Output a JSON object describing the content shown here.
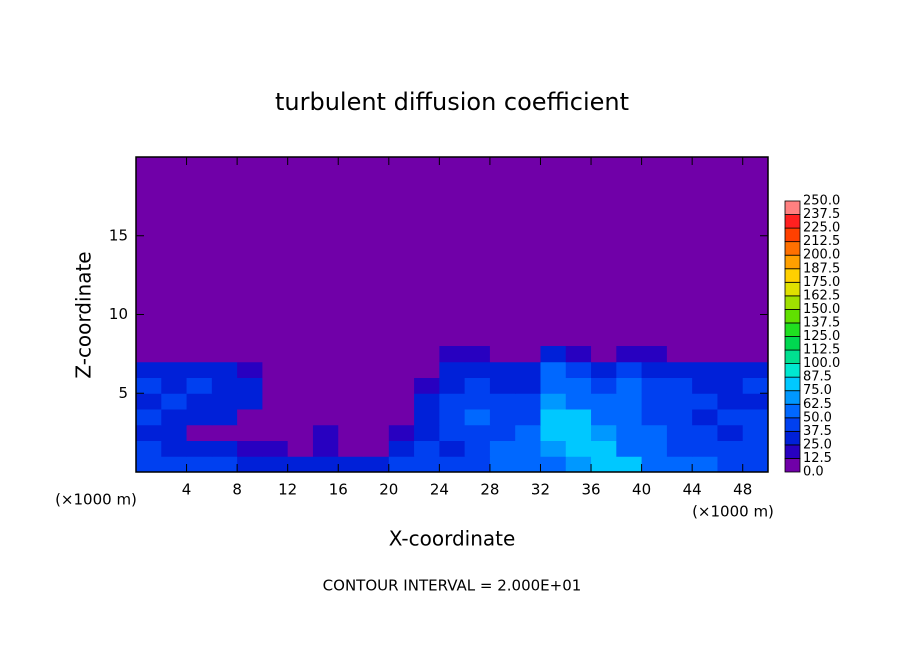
{
  "chart_data": {
    "type": "heatmap",
    "title": "turbulent diffusion coefficient",
    "xlabel": "X-coordinate",
    "ylabel": "Z-coordinate",
    "x_unit_label": "(×1000 m)",
    "y_unit_label": "(×1000 m)",
    "footer": "CONTOUR INTERVAL = 2.000E+01",
    "xlim": [
      0,
      50
    ],
    "ylim": [
      0,
      20
    ],
    "xticks": [
      4,
      8,
      12,
      16,
      20,
      24,
      28,
      32,
      36,
      40,
      44,
      48
    ],
    "yticks": [
      5,
      10,
      15
    ],
    "x_bins": [
      0,
      2,
      4,
      6,
      8,
      10,
      12,
      14,
      16,
      18,
      20,
      22,
      24,
      26,
      28,
      30,
      32,
      34,
      36,
      38,
      40,
      42,
      44,
      46,
      48,
      50
    ],
    "z_bins": [
      0,
      1,
      2,
      3,
      4,
      5,
      6,
      7,
      8
    ],
    "values": [
      [
        45,
        40,
        40,
        38,
        35,
        30,
        28,
        30,
        30,
        35,
        40,
        45,
        40,
        45,
        50,
        55,
        60,
        70,
        80,
        75,
        60,
        55,
        50,
        45,
        45
      ],
      [
        40,
        35,
        30,
        25,
        20,
        15,
        10,
        20,
        10,
        10,
        30,
        40,
        35,
        45,
        50,
        55,
        70,
        80,
        85,
        60,
        55,
        45,
        40,
        40,
        40
      ],
      [
        35,
        30,
        10,
        10,
        5,
        5,
        5,
        15,
        5,
        5,
        20,
        35,
        40,
        45,
        40,
        50,
        75,
        85,
        70,
        55,
        50,
        45,
        40,
        35,
        40
      ],
      [
        40,
        35,
        30,
        35,
        10,
        5,
        5,
        5,
        5,
        5,
        10,
        30,
        45,
        50,
        45,
        45,
        80,
        75,
        60,
        50,
        45,
        40,
        35,
        40,
        40
      ],
      [
        35,
        40,
        35,
        30,
        25,
        5,
        5,
        5,
        5,
        5,
        5,
        25,
        40,
        45,
        40,
        40,
        70,
        60,
        50,
        55,
        45,
        40,
        40,
        35,
        35
      ],
      [
        40,
        35,
        40,
        35,
        30,
        10,
        5,
        5,
        5,
        5,
        5,
        20,
        35,
        40,
        35,
        30,
        60,
        55,
        45,
        60,
        40,
        40,
        35,
        35,
        40
      ],
      [
        35,
        30,
        35,
        30,
        20,
        5,
        5,
        5,
        5,
        5,
        5,
        10,
        30,
        35,
        30,
        25,
        50,
        40,
        30,
        45,
        30,
        30,
        30,
        30,
        30
      ],
      [
        5,
        5,
        5,
        5,
        5,
        5,
        5,
        5,
        5,
        5,
        5,
        5,
        20,
        20,
        10,
        10,
        30,
        20,
        10,
        20,
        15,
        10,
        10,
        5,
        5
      ]
    ],
    "levels": [
      {
        "value": 0,
        "label": "0.0"
      },
      {
        "value": 12.5,
        "label": "12.5"
      },
      {
        "value": 25,
        "label": "25.0"
      },
      {
        "value": 37.5,
        "label": "37.5"
      },
      {
        "value": 50,
        "label": "50.0"
      },
      {
        "value": 62.5,
        "label": "62.5"
      },
      {
        "value": 75,
        "label": "75.0"
      },
      {
        "value": 87.5,
        "label": "87.5"
      },
      {
        "value": 100,
        "label": "100.0"
      },
      {
        "value": 112.5,
        "label": "112.5"
      },
      {
        "value": 125,
        "label": "125.0"
      },
      {
        "value": 137.5,
        "label": "137.5"
      },
      {
        "value": 150,
        "label": "150.0"
      },
      {
        "value": 162.5,
        "label": "162.5"
      },
      {
        "value": 175,
        "label": "175.0"
      },
      {
        "value": 187.5,
        "label": "187.5"
      },
      {
        "value": 200,
        "label": "200.0"
      },
      {
        "value": 212.5,
        "label": "212.5"
      },
      {
        "value": 225,
        "label": "225.0"
      },
      {
        "value": 237.5,
        "label": "237.5"
      },
      {
        "value": 250,
        "label": "250.0"
      }
    ],
    "level_colors": [
      "#7000a8",
      "#2800c0",
      "#0020d8",
      "#0040f0",
      "#0068ff",
      "#0098ff",
      "#00c8ff",
      "#00e8d0",
      "#00e090",
      "#00d850",
      "#20e020",
      "#60e000",
      "#a0e000",
      "#e0e000",
      "#ffd000",
      "#ffa000",
      "#ff7000",
      "#ff4000",
      "#ff2020",
      "#ff8080"
    ]
  }
}
